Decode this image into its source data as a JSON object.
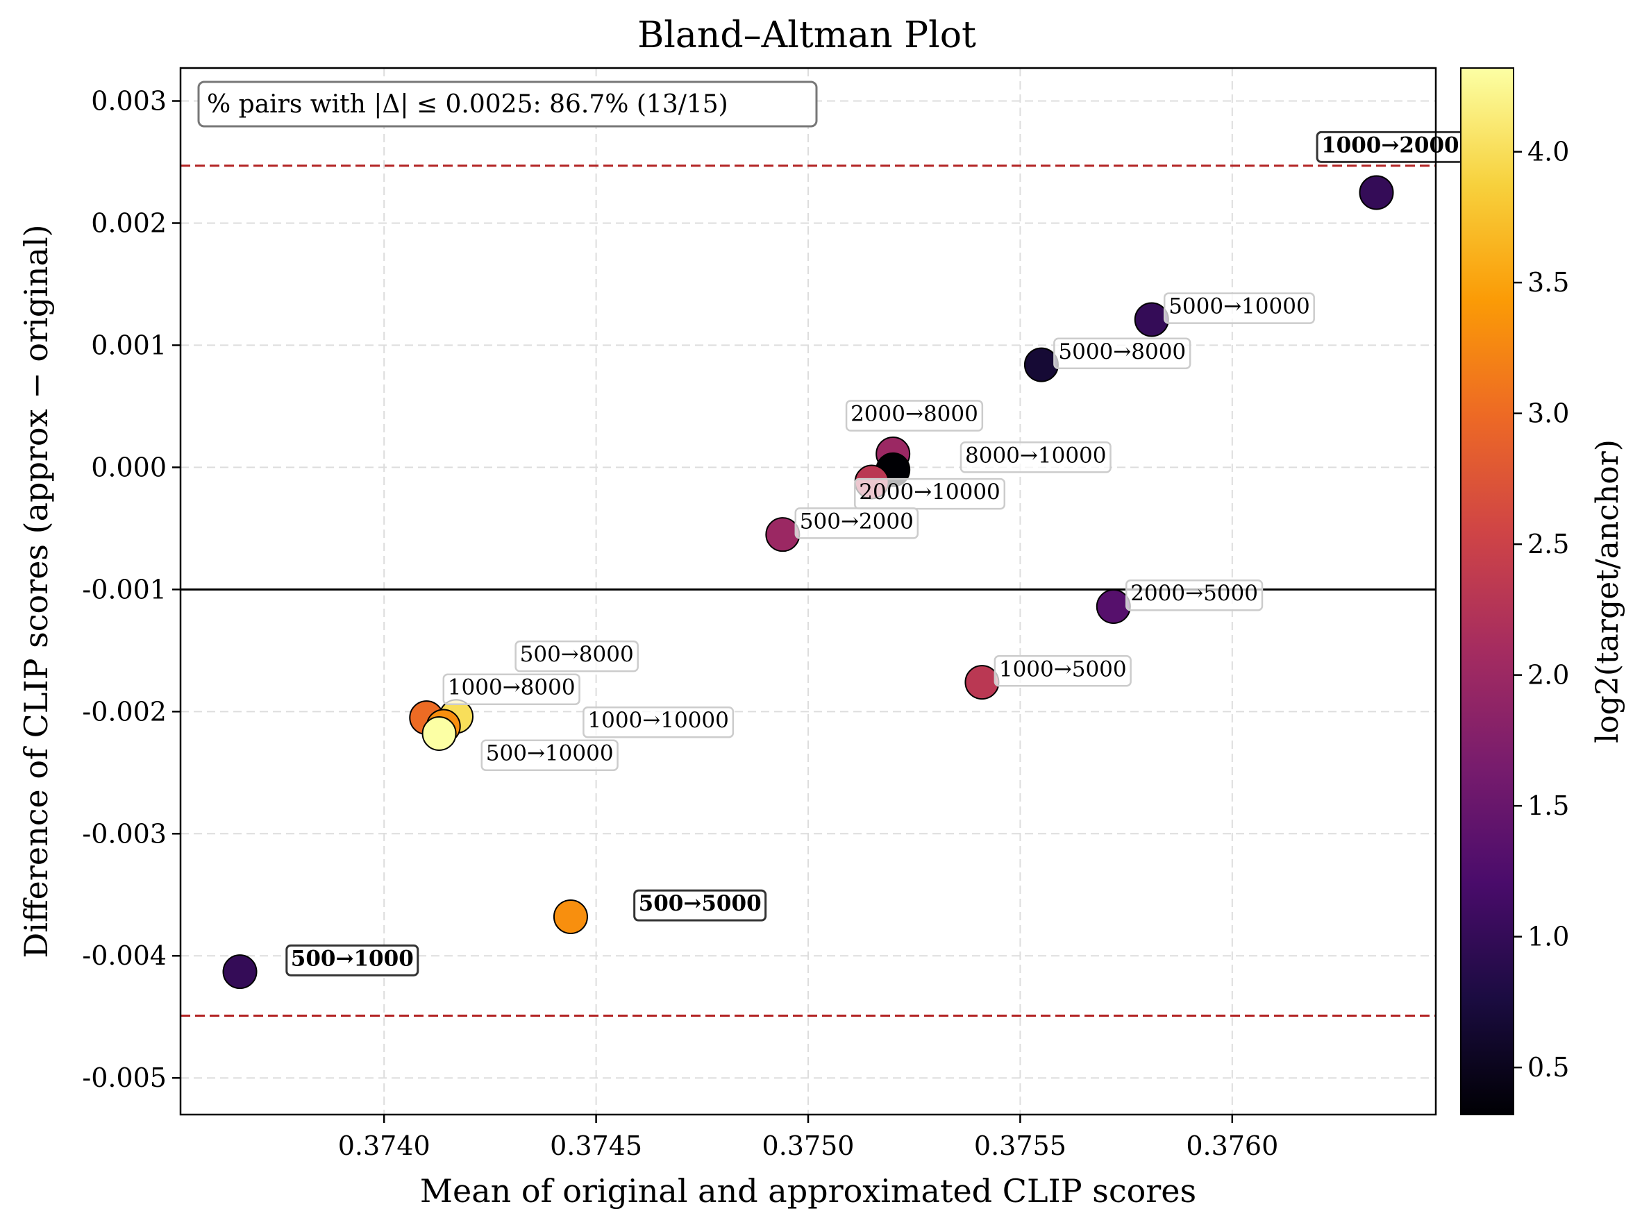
{
  "chart_data": {
    "type": "scatter",
    "title": "Bland–Altman Plot",
    "xlabel": "Mean of original and approximated CLIP scores",
    "ylabel": "Difference of CLIP scores (approx − original)",
    "xlim": [
      0.37352,
      0.37648
    ],
    "ylim": [
      -0.0053,
      0.00327
    ],
    "xticks": [
      0.374,
      0.3745,
      0.375,
      0.3755,
      0.376
    ],
    "xtick_labels": [
      "0.3740",
      "0.3745",
      "0.3750",
      "0.3755",
      "0.3760"
    ],
    "yticks": [
      0.003,
      0.002,
      0.001,
      0.0,
      -0.001,
      -0.002,
      -0.003,
      -0.004,
      -0.005
    ],
    "ytick_labels": [
      "0.003",
      "0.002",
      "0.001",
      "0.000",
      "-0.001",
      "-0.002",
      "-0.003",
      "-0.004",
      "-0.005"
    ],
    "grid": true,
    "mean_line": -0.001,
    "limits_of_agreement": [
      0.00247,
      -0.00449
    ],
    "annotation_box": "% pairs with |Δ| ≤ 0.0025: 86.7% (13/15)",
    "colorbar": {
      "label": "log2(target/anchor)",
      "colormap": "inferno",
      "range": [
        0.32,
        4.32
      ],
      "ticks": [
        0.5,
        1.0,
        1.5,
        2.0,
        2.5,
        3.0,
        3.5,
        4.0
      ],
      "tick_labels": [
        "0.5",
        "1.0",
        "1.5",
        "2.0",
        "2.5",
        "3.0",
        "3.5",
        "4.0"
      ]
    },
    "points": [
      {
        "label": "1000→2000",
        "x": 0.37634,
        "y": 0.00225,
        "c": 1.0,
        "bold": true,
        "lx": 0.37621,
        "ly": 0.00258
      },
      {
        "label": "5000→10000",
        "x": 0.37581,
        "y": 0.00121,
        "c": 1.0,
        "bold": false,
        "lx": 0.37585,
        "ly": 0.00126
      },
      {
        "label": "5000→8000",
        "x": 0.37555,
        "y": 0.00084,
        "c": 0.678,
        "bold": false,
        "lx": 0.37559,
        "ly": 0.00089
      },
      {
        "label": "2000→8000",
        "x": 0.3752,
        "y": 0.00011,
        "c": 2.0,
        "bold": false,
        "lx": 0.3751,
        "ly": 0.00038
      },
      {
        "label": "8000→10000",
        "x": 0.3752,
        "y": -2e-05,
        "c": 0.32,
        "bold": false,
        "lx": 0.37537,
        "ly": 4e-05
      },
      {
        "label": "2000→10000",
        "x": 0.37515,
        "y": -0.00012,
        "c": 2.32,
        "bold": false,
        "lx": 0.37512,
        "ly": -0.00026
      },
      {
        "label": "500→2000",
        "x": 0.37494,
        "y": -0.00055,
        "c": 2.0,
        "bold": false,
        "lx": 0.37498,
        "ly": -0.0005
      },
      {
        "label": "2000→5000",
        "x": 0.37572,
        "y": -0.00114,
        "c": 1.32,
        "bold": false,
        "lx": 0.37576,
        "ly": -0.00109
      },
      {
        "label": "1000→5000",
        "x": 0.37541,
        "y": -0.00176,
        "c": 2.32,
        "bold": false,
        "lx": 0.37545,
        "ly": -0.00171
      },
      {
        "label": "500→8000",
        "x": 0.37417,
        "y": -0.00204,
        "c": 4.0,
        "bold": false,
        "lx": 0.37432,
        "ly": -0.00159
      },
      {
        "label": "1000→8000",
        "x": 0.3741,
        "y": -0.00205,
        "c": 3.0,
        "bold": false,
        "lx": 0.37415,
        "ly": -0.00186
      },
      {
        "label": "1000→10000",
        "x": 0.37414,
        "y": -0.00212,
        "c": 3.32,
        "bold": false,
        "lx": 0.37448,
        "ly": -0.00213
      },
      {
        "label": "500→10000",
        "x": 0.37413,
        "y": -0.00218,
        "c": 4.32,
        "bold": false,
        "lx": 0.37424,
        "ly": -0.0024
      },
      {
        "label": "500→5000",
        "x": 0.37444,
        "y": -0.00368,
        "c": 3.32,
        "bold": true,
        "lx": 0.3746,
        "ly": -0.00363
      },
      {
        "label": "500→1000",
        "x": 0.37366,
        "y": -0.00413,
        "c": 1.0,
        "bold": true,
        "lx": 0.37378,
        "ly": -0.00408
      }
    ]
  }
}
